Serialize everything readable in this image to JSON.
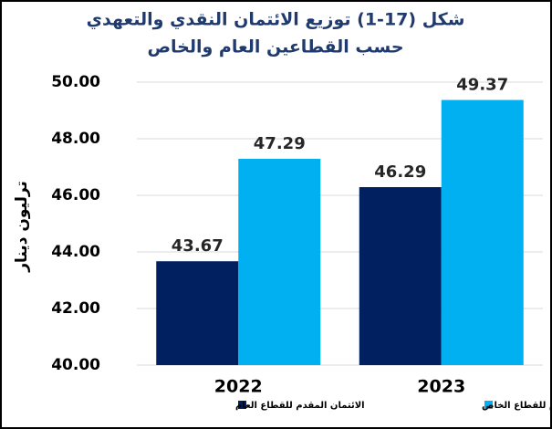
{
  "chart_data": {
    "type": "bar",
    "title": "شكل (17-1) توزيع الائتمان النقدي والتعهدي",
    "subtitle": "حسب القطاعين العام والخاص",
    "y_label": "ترليون دينار",
    "categories": [
      "2022",
      "2023"
    ],
    "series": [
      {
        "name": "الائتمان المقدم للقطاع العام",
        "color": "#002060",
        "values": [
          43.67,
          46.29
        ]
      },
      {
        "name": "الائتمان المقدم للقطاع الخاص",
        "color": "#00b0f0",
        "values": [
          47.29,
          49.37
        ]
      }
    ],
    "ylim": [
      40,
      50
    ],
    "yticks": [
      {
        "value": 40,
        "label": "40.00"
      },
      {
        "value": 42,
        "label": "42.00"
      },
      {
        "value": 44,
        "label": "44.00"
      },
      {
        "value": 46,
        "label": "46.00"
      },
      {
        "value": 48,
        "label": "48.00"
      },
      {
        "value": 50,
        "label": "50.00"
      }
    ],
    "grid": true
  }
}
